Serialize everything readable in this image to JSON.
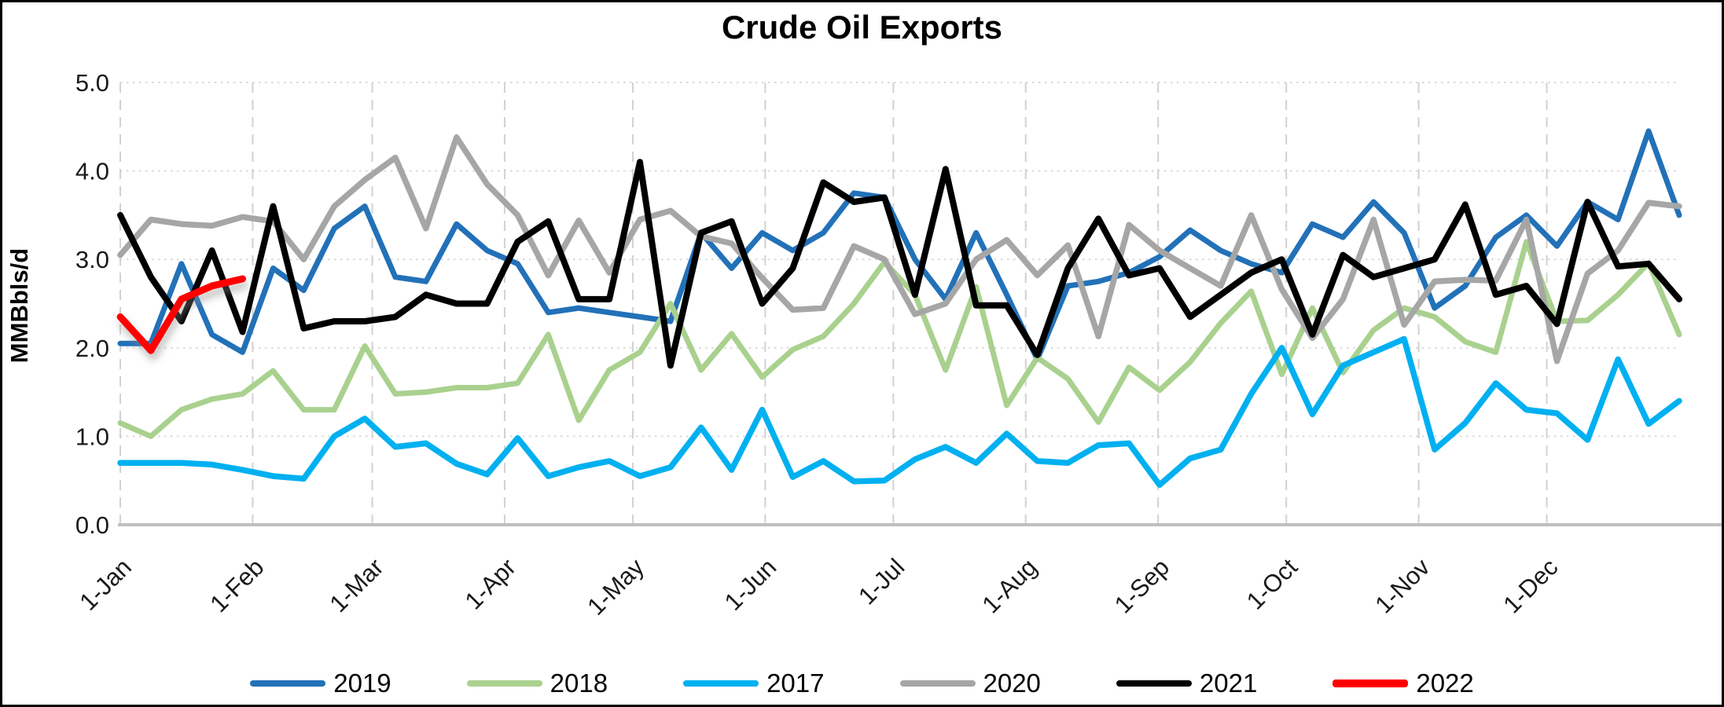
{
  "title": "Crude Oil Exports",
  "chart_data": {
    "type": "line",
    "title": "Crude Oil Exports",
    "xlabel": "",
    "ylabel": "MMBbls/d",
    "ylim": [
      0,
      5
    ],
    "grid": true,
    "legend_position": "bottom",
    "y_tick_labels": [
      "0.0",
      "1.0",
      "2.0",
      "3.0",
      "4.0",
      "5.0"
    ],
    "x_tick_labels": [
      "1-Jan",
      "1-Feb",
      "1-Mar",
      "1-Apr",
      "1-May",
      "1-Jun",
      "1-Jul",
      "1-Aug",
      "1-Sep",
      "1-Oct",
      "1-Nov",
      "1-Dec"
    ],
    "month_day_offsets": [
      0,
      31,
      59,
      90,
      120,
      151,
      181,
      212,
      243,
      273,
      304,
      334
    ],
    "x_unit": "weekly (52 points per year)",
    "series": [
      {
        "name": "2019",
        "color": "#2271B8",
        "stroke_width": 7,
        "values": [
          2.05,
          2.05,
          2.95,
          2.15,
          1.95,
          2.9,
          2.65,
          3.35,
          3.6,
          2.8,
          2.75,
          3.4,
          3.1,
          2.95,
          2.4,
          2.45,
          2.4,
          2.35,
          2.3,
          3.3,
          2.9,
          3.3,
          3.1,
          3.3,
          3.75,
          3.7,
          3.0,
          2.55,
          3.3,
          2.6,
          1.87,
          2.7,
          2.75,
          2.85,
          3.03,
          3.33,
          3.1,
          2.95,
          2.85,
          3.4,
          3.25,
          3.65,
          3.3,
          2.45,
          2.7,
          3.25,
          3.5,
          3.15,
          3.65,
          3.45,
          4.45,
          3.5
        ]
      },
      {
        "name": "2018",
        "color": "#A9D18E",
        "stroke_width": 7,
        "values": [
          1.15,
          1.0,
          1.3,
          1.42,
          1.48,
          1.74,
          1.3,
          1.3,
          2.02,
          1.48,
          1.5,
          1.55,
          1.55,
          1.6,
          2.15,
          1.18,
          1.75,
          1.95,
          2.5,
          1.75,
          2.16,
          1.67,
          1.98,
          2.13,
          2.5,
          2.97,
          2.6,
          1.75,
          2.69,
          1.35,
          1.89,
          1.65,
          1.16,
          1.78,
          1.52,
          1.84,
          2.28,
          2.64,
          1.7,
          2.45,
          1.72,
          2.2,
          2.45,
          2.35,
          2.07,
          1.95,
          3.2,
          2.3,
          2.31,
          2.6,
          2.96,
          2.15
        ]
      },
      {
        "name": "2017",
        "color": "#00B0F0",
        "stroke_width": 7.5,
        "values": [
          0.7,
          0.7,
          0.7,
          0.68,
          0.62,
          0.55,
          0.52,
          1.0,
          1.2,
          0.88,
          0.92,
          0.69,
          0.57,
          0.98,
          0.55,
          0.65,
          0.72,
          0.55,
          0.65,
          1.1,
          0.62,
          1.3,
          0.54,
          0.72,
          0.49,
          0.5,
          0.74,
          0.88,
          0.7,
          1.03,
          0.72,
          0.7,
          0.9,
          0.92,
          0.45,
          0.75,
          0.85,
          1.48,
          2.0,
          1.25,
          1.8,
          1.95,
          2.1,
          0.85,
          1.15,
          1.6,
          1.3,
          1.26,
          0.96,
          1.87,
          1.14,
          1.4
        ]
      },
      {
        "name": "2020",
        "color": "#A6A6A6",
        "stroke_width": 7.5,
        "values": [
          3.05,
          3.45,
          3.4,
          3.38,
          3.48,
          3.43,
          3.0,
          3.6,
          3.9,
          4.15,
          3.35,
          4.38,
          3.85,
          3.5,
          2.82,
          3.44,
          2.85,
          3.45,
          3.55,
          3.26,
          3.18,
          2.79,
          2.43,
          2.45,
          3.15,
          3.0,
          2.38,
          2.5,
          3.0,
          3.22,
          2.82,
          3.16,
          2.13,
          3.39,
          3.1,
          2.9,
          2.7,
          3.5,
          2.66,
          2.11,
          2.55,
          3.45,
          2.26,
          2.75,
          2.77,
          2.76,
          3.45,
          1.85,
          2.84,
          3.1,
          3.64,
          3.6
        ]
      },
      {
        "name": "2021",
        "color": "#000000",
        "stroke_width": 8,
        "values": [
          3.5,
          2.8,
          2.3,
          3.1,
          2.18,
          3.6,
          2.22,
          2.3,
          2.3,
          2.35,
          2.6,
          2.5,
          2.5,
          3.2,
          3.43,
          2.55,
          2.55,
          4.1,
          1.8,
          3.3,
          3.43,
          2.5,
          2.9,
          3.87,
          3.65,
          3.7,
          2.6,
          4.02,
          2.48,
          2.48,
          1.92,
          2.9,
          3.46,
          2.82,
          2.9,
          2.35,
          2.6,
          2.85,
          3.0,
          2.15,
          3.05,
          2.8,
          2.9,
          3.0,
          3.62,
          2.6,
          2.7,
          2.27,
          3.65,
          2.92,
          2.95,
          2.55
        ]
      },
      {
        "name": "2022",
        "color": "#FF0000",
        "stroke_width": 9,
        "shadow": true,
        "values": [
          2.35,
          1.97,
          2.55,
          2.7,
          2.78
        ]
      }
    ]
  },
  "colors": {
    "h_gridline": "#D9D9D9",
    "v_gridline": "#D2D2D2",
    "axis_line": "#BFBFBF",
    "tick_text": "#1a1a1a"
  }
}
